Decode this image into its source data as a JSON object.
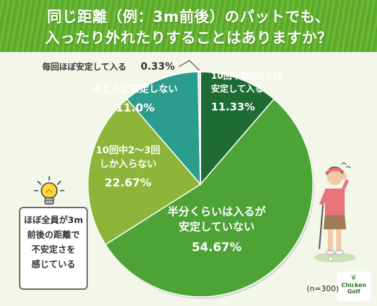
{
  "title_lines": [
    "同じ距離（例：3m前後）のパットでも、",
    "入ったり外れたりすることはありますか？"
  ],
  "sample_size": "(n=300)",
  "callout_lines": [
    "ほぼ全員が3m",
    "前後の距離で",
    "不安定さを",
    "感じている"
  ],
  "logo": {
    "line1": "Chicken",
    "line2": "Golf"
  },
  "colors": {
    "header_bg": "#5fae2e",
    "background": "#f3f7ea",
    "slice_8plus": "#1e6b34",
    "slice_half": "#4da335",
    "slice_2to3": "#8cb53a",
    "slice_rarely": "#2a9d8f",
    "slice_almost_always": "#d9d9d9"
  },
  "chart_data": {
    "type": "pie",
    "title": "",
    "slices": [
      {
        "lines": [
          "10回中8回以上は",
          "安定して入る"
        ],
        "percent": "11.33%",
        "value": 11.33,
        "color": "#1e6b34"
      },
      {
        "lines": [
          "半分くらいは入るが",
          "安定していない"
        ],
        "percent": "54.67%",
        "value": 54.67,
        "color": "#4da335"
      },
      {
        "lines": [
          "10回中2〜3回",
          "しか入らない"
        ],
        "percent": "22.67%",
        "value": 22.67,
        "color": "#8cb53a"
      },
      {
        "lines": [
          "ほとんど安定しない"
        ],
        "percent": "11.0%",
        "value": 11.0,
        "color": "#2a9d8f"
      },
      {
        "lines": [
          "毎回ほぼ安定して入る"
        ],
        "percent": "0.33%",
        "value": 0.33,
        "color": "#d9d9d9"
      }
    ]
  }
}
